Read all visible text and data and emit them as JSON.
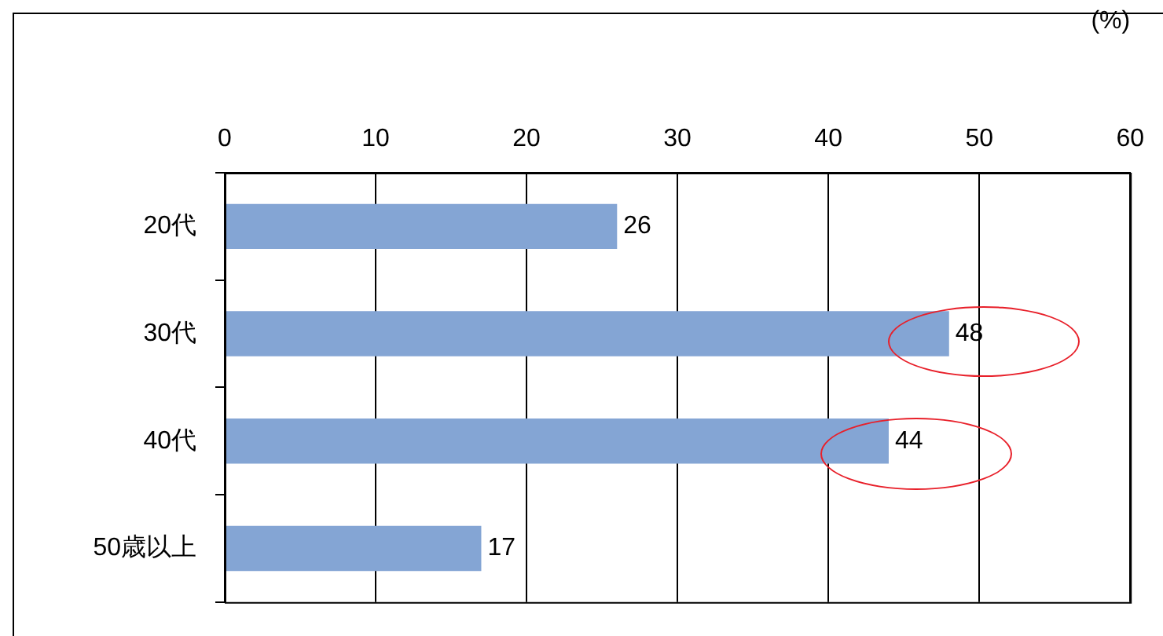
{
  "chart_data": {
    "type": "bar",
    "orientation": "horizontal",
    "xlabel": "(%)",
    "categories": [
      "20代",
      "30代",
      "40代",
      "50歳以上"
    ],
    "values": [
      26,
      48,
      44,
      17
    ],
    "color": "#84a5d4",
    "xlim": [
      0,
      60
    ],
    "xticks": [
      0,
      10,
      20,
      30,
      40,
      50,
      60
    ],
    "grid": "x",
    "data_labels": true
  }
}
